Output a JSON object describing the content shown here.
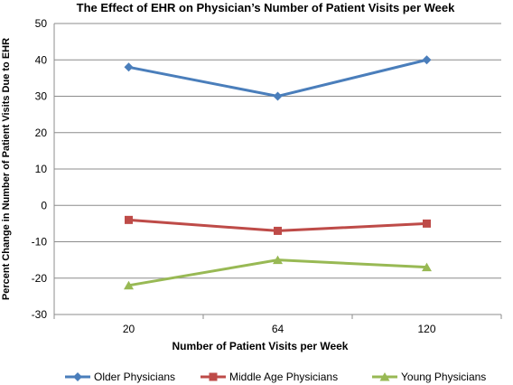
{
  "chart_data": {
    "type": "line",
    "title": "The Effect of EHR on Physician’s Number of Patient Visits per Week",
    "xlabel": "Number of Patient Visits per Week",
    "ylabel": "Percent Change in Number of Patient Visits Due to EHR",
    "categories": [
      "20",
      "64",
      "120"
    ],
    "ylim": [
      -30,
      50
    ],
    "yticks": [
      50,
      40,
      30,
      20,
      10,
      0,
      -10,
      -20,
      -30
    ],
    "grid": true,
    "legend_position": "bottom",
    "series": [
      {
        "name": "Older Physicians",
        "values": [
          38,
          30,
          40
        ],
        "color": "#4a7ebb",
        "marker": "diamond"
      },
      {
        "name": "Middle Age Physicians",
        "values": [
          -4,
          -7,
          -5
        ],
        "color": "#be4b48",
        "marker": "square"
      },
      {
        "name": "Young Physicians",
        "values": [
          -22,
          -15,
          -17
        ],
        "color": "#98b954",
        "marker": "triangle"
      }
    ]
  }
}
